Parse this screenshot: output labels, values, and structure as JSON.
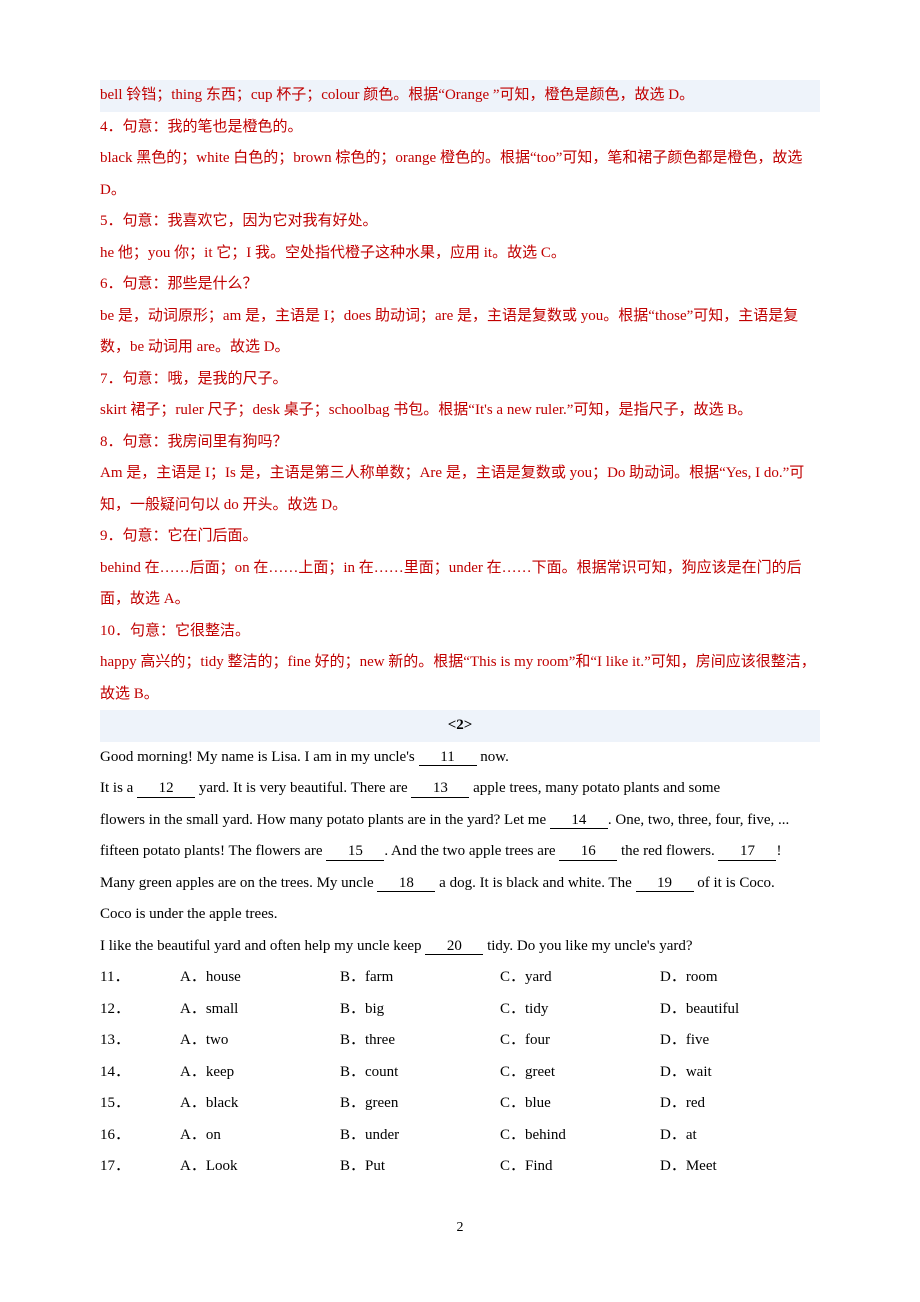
{
  "ans3": "bell 铃铛；thing 东西；cup 杯子；colour 颜色。根据“Orange ”可知，橙色是颜色，故选 D。",
  "q4": "4．句意：我的笔也是橙色的。",
  "ans4": "black 黑色的；white 白色的；brown 棕色的；orange 橙色的。根据“too”可知，笔和裙子颜色都是橙色，故选 D。",
  "q5": "5．句意：我喜欢它，因为它对我有好处。",
  "ans5": "he 他；you 你；it 它；I 我。空处指代橙子这种水果，应用 it。故选 C。",
  "q6": "6．句意：那些是什么？",
  "ans6": "be 是，动词原形；am 是，主语是 I；does 助动词；are 是，主语是复数或 you。根据“those”可知，主语是复数，be 动词用 are。故选 D。",
  "q7": "7．句意：哦，是我的尺子。",
  "ans7": "skirt 裙子；ruler 尺子；desk 桌子；schoolbag 书包。根据“It's a new ruler.”可知，是指尺子，故选 B。",
  "q8": "8．句意：我房间里有狗吗？",
  "ans8": "Am 是，主语是 I；Is 是，主语是第三人称单数；Are 是，主语是复数或 you；Do 助动词。根据“Yes, I do.”可知，一般疑问句以 do 开头。故选 D。",
  "q9": "9．句意：它在门后面。",
  "ans9": "behind 在……后面；on 在……上面；in 在……里面；under 在……下面。根据常识可知，狗应该是在门的后面，故选 A。",
  "q10": "10．句意：它很整洁。",
  "ans10": "happy 高兴的；tidy 整洁的；fine 好的；new 新的。根据“This is my room”和“I like it.”可知，房间应该很整洁，故选 B。",
  "section2": "<2>",
  "p1a": "Good morning! My name is Lisa. I am in my uncle's ",
  "b11": "11",
  "p1b": " now.",
  "p2a": "It is a ",
  "b12": "12",
  "p2b": " yard. It is very beautiful. There are ",
  "b13": "13",
  "p2c": " apple trees, many potato plants and some",
  "p3a": "flowers in the small yard. How many potato plants are in the yard? Let me ",
  "b14": "14",
  "p3b": ". One, two, three, four, five, ...",
  "p4a": "fifteen potato plants! The flowers are ",
  "b15": "15",
  "p4b": ". And the two apple trees are ",
  "b16": "16",
  "p4c": " the red flowers. ",
  "b17": "17",
  "p4d": "!",
  "p5a": "Many green apples are on the trees. My uncle ",
  "b18": "18",
  "p5b": " a dog. It is black and white. The ",
  "b19": "19",
  "p5c": " of it is Coco.",
  "p6a": "Coco is under the apple trees.",
  "p7a": "I like the beautiful yard and often help my uncle keep ",
  "b20": "20",
  "p7b": " tidy. Do you like my uncle's yard?",
  "opts": [
    {
      "n": "11．",
      "a": "A．house",
      "b": "B．farm",
      "c": "C．yard",
      "d": "D．room"
    },
    {
      "n": "12．",
      "a": "A．small",
      "b": "B．big",
      "c": "C．tidy",
      "d": "D．beautiful"
    },
    {
      "n": "13．",
      "a": "A．two",
      "b": "B．three",
      "c": "C．four",
      "d": "D．five"
    },
    {
      "n": "14．",
      "a": "A．keep",
      "b": "B．count",
      "c": "C．greet",
      "d": "D．wait"
    },
    {
      "n": "15．",
      "a": "A．black",
      "b": "B．green",
      "c": "C．blue",
      "d": "D．red"
    },
    {
      "n": "16．",
      "a": "A．on",
      "b": "B．under",
      "c": "C．behind",
      "d": "D．at"
    },
    {
      "n": "17．",
      "a": "A．Look",
      "b": "B．Put",
      "c": "C．Find",
      "d": "D．Meet"
    }
  ],
  "pageNum": "2"
}
